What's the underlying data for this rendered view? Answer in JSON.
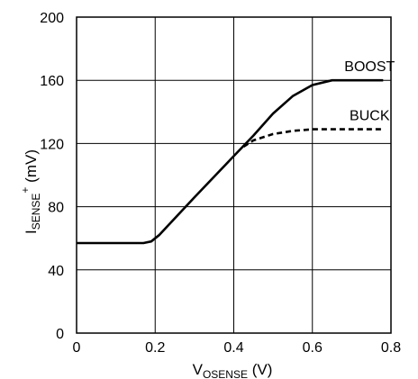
{
  "chart_data": {
    "type": "line",
    "xlabel": {
      "main": "V",
      "sub": "OSENSE",
      "unit": " (V)"
    },
    "ylabel": {
      "main": "I",
      "sub": "SENSE",
      "sup": "+",
      "unit": " (mV)"
    },
    "xlim": [
      0,
      0.8
    ],
    "ylim": [
      0,
      200
    ],
    "x_ticks": [
      0,
      0.2,
      0.4,
      0.6,
      0.8
    ],
    "x_tick_labels": [
      "0",
      "0.2",
      "0.4",
      "0.6",
      "0.8"
    ],
    "y_ticks": [
      0,
      40,
      80,
      120,
      160,
      200
    ],
    "y_tick_labels": [
      "0",
      "40",
      "80",
      "120",
      "160",
      "200"
    ],
    "grid": true,
    "legend": "inline labels",
    "series": [
      {
        "name": "BOOST",
        "style": "solid",
        "color": "#000000",
        "points": [
          [
            0,
            57
          ],
          [
            0.17,
            57
          ],
          [
            0.19,
            58
          ],
          [
            0.21,
            62
          ],
          [
            0.3,
            86
          ],
          [
            0.4,
            112
          ],
          [
            0.45,
            125
          ],
          [
            0.5,
            139
          ],
          [
            0.55,
            150
          ],
          [
            0.6,
            157
          ],
          [
            0.65,
            160
          ],
          [
            0.78,
            160
          ]
        ]
      },
      {
        "name": "BUCK",
        "style": "dashed",
        "color": "#000000",
        "points": [
          [
            0.425,
            118
          ],
          [
            0.45,
            122
          ],
          [
            0.5,
            126
          ],
          [
            0.55,
            128
          ],
          [
            0.6,
            129
          ],
          [
            0.78,
            129
          ]
        ]
      }
    ]
  }
}
